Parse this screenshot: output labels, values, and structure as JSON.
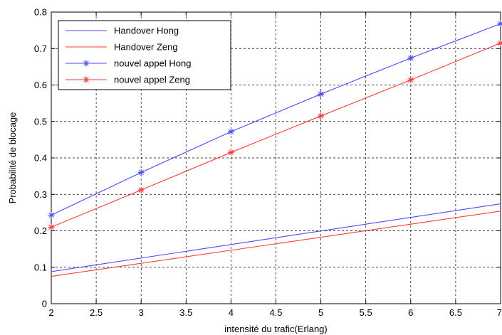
{
  "chart_data": {
    "type": "line",
    "title": "",
    "xlabel": "intensité du trafic(Erlang)",
    "ylabel": "Probabilité de blocage",
    "xlim": [
      2,
      7
    ],
    "ylim": [
      0,
      0.8
    ],
    "x_ticks": [
      2,
      2.5,
      3,
      3.5,
      4,
      4.5,
      5,
      5.5,
      6,
      6.5,
      7
    ],
    "x_tick_labels": [
      "2",
      "2.5",
      "3",
      "3.5",
      "4",
      "4.5",
      "5",
      "5.5",
      "6",
      "6.5",
      "7"
    ],
    "y_ticks": [
      0,
      0.1,
      0.2,
      0.3,
      0.4,
      0.5,
      0.6,
      0.7,
      0.8
    ],
    "y_tick_labels": [
      "0",
      "0.1",
      "0.2",
      "0.3",
      "0.4",
      "0.5",
      "0.6",
      "0.7",
      "0.8"
    ],
    "grid": true,
    "legend_position": "top-left",
    "series": [
      {
        "name": "Handover Hong",
        "color": "#4a4aff",
        "marker": "none",
        "x": [
          2,
          7
        ],
        "values": [
          0.088,
          0.274
        ]
      },
      {
        "name": "Handover Zeng",
        "color": "#ff3b3b",
        "marker": "none",
        "x": [
          2,
          7
        ],
        "values": [
          0.075,
          0.254
        ]
      },
      {
        "name": "nouvel appel Hong",
        "color": "#4a4aff",
        "marker": "star",
        "x": [
          2,
          3,
          4,
          5,
          6,
          7
        ],
        "values": [
          0.243,
          0.36,
          0.472,
          0.575,
          0.674,
          0.768
        ]
      },
      {
        "name": "nouvel appel Zeng",
        "color": "#ff3b3b",
        "marker": "star",
        "x": [
          2,
          3,
          4,
          5,
          6,
          7
        ],
        "values": [
          0.21,
          0.312,
          0.415,
          0.515,
          0.614,
          0.715
        ]
      }
    ]
  }
}
